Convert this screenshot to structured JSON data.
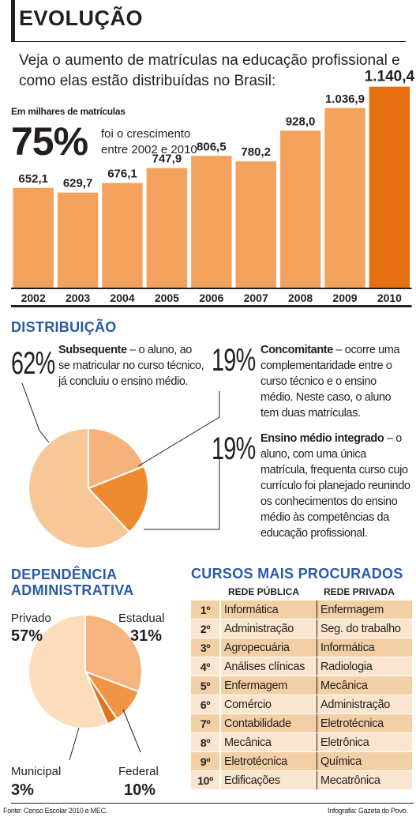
{
  "header": {
    "title": "EVOLUÇÃO",
    "subtitle": "Veja o aumento de matrículas na educação profissional e como elas estão distribuídas no Brasil:"
  },
  "evolucao": {
    "unit": "Em milhares de matrículas",
    "growth_pct": "75%",
    "growth_text": "foi o crescimento entre 2002 e 2010"
  },
  "chart_data": [
    {
      "type": "bar",
      "categories": [
        "2002",
        "2003",
        "2004",
        "2005",
        "2006",
        "2007",
        "2008",
        "2009",
        "2010"
      ],
      "values": [
        652.1,
        629.7,
        676.1,
        747.9,
        806.5,
        780.2,
        928.0,
        1036.9,
        1140.4
      ],
      "value_labels": [
        "652,1",
        "629,7",
        "676,1",
        "747,9",
        "806,5",
        "780,2",
        "928,0",
        "1.036,9",
        "1.140,4"
      ],
      "ylabel": "Em milhares de matrículas",
      "colors": {
        "bar": "#f3a25e",
        "highlight": "#e66f10",
        "axis": "#231f20"
      },
      "highlight_index": 8
    },
    {
      "type": "pie",
      "title": "DISTRIBUIÇÃO",
      "slices": [
        {
          "label": "Subsequente",
          "value": 62,
          "display": "62%",
          "color": "#f7c798"
        },
        {
          "label": "Concomitante",
          "value": 19,
          "display": "19%",
          "color": "#f5b27a"
        },
        {
          "label": "Ensino médio integrado",
          "value": 19,
          "display": "19%",
          "color": "#ee8a30"
        }
      ]
    },
    {
      "type": "pie",
      "title": "DEPENDÊNCIA ADMINISTRATIVA",
      "slices": [
        {
          "label": "Estadual",
          "value": 31,
          "display": "31%",
          "color": "#f6b57e"
        },
        {
          "label": "Federal",
          "value": 10,
          "display": "10%",
          "color": "#f19446"
        },
        {
          "label": "Municipal",
          "value": 3,
          "display": "3%",
          "color": "#e37415"
        },
        {
          "label": "Privado",
          "value": 57,
          "display": "57%",
          "color": "#fcdcbb"
        }
      ]
    }
  ],
  "distribuicao": {
    "title": "DISTRIBUIÇÃO",
    "subsequente": {
      "pct": "62%",
      "name": "Subsequente",
      "text": " – o aluno, ao se matricular no curso técnico, já concluiu o ensino médio."
    },
    "concomitante": {
      "pct": "19%",
      "name": "Concomitante",
      "text": " – ocorre uma complementaridade entre o curso técnico e o ensino médio. Neste caso, o aluno tem duas matrículas."
    },
    "integrado": {
      "pct": "19%",
      "name": "Ensino médio integrado",
      "text": " – o aluno, com uma única matrícula, frequenta curso cujo currículo foi planejado reunindo os conhecimentos do ensino médio às competências da educação profissional."
    }
  },
  "dependencia": {
    "title": "DEPENDÊNCIA ADMINISTRATIVA",
    "privado": {
      "label": "Privado",
      "pct": "57%"
    },
    "estadual": {
      "label": "Estadual",
      "pct": "31%"
    },
    "municipal": {
      "label": "Municipal",
      "pct": "3%"
    },
    "federal": {
      "label": "Federal",
      "pct": "10%"
    }
  },
  "cursos": {
    "title": "CURSOS MAIS PROCURADOS",
    "col_publica": "REDE PÚBLICA",
    "col_privada": "REDE PRIVADA",
    "rows": [
      {
        "rank": "1º",
        "publica": "Informática",
        "privada": "Enfermagem"
      },
      {
        "rank": "2º",
        "publica": "Administração",
        "privada": "Seg. do trabalho"
      },
      {
        "rank": "3º",
        "publica": "Agropecuária",
        "privada": "Informática"
      },
      {
        "rank": "4º",
        "publica": "Análises clínicas",
        "privada": "Radiologia"
      },
      {
        "rank": "5º",
        "publica": "Enfermagem",
        "privada": "Mecânica"
      },
      {
        "rank": "6º",
        "publica": "Comércio",
        "privada": "Administração"
      },
      {
        "rank": "7º",
        "publica": "Contabilidade",
        "privada": "Eletrotécnica"
      },
      {
        "rank": "8º",
        "publica": "Mecânica",
        "privada": "Eletrônica"
      },
      {
        "rank": "9º",
        "publica": "Eletrotécnica",
        "privada": "Química"
      },
      {
        "rank": "10º",
        "publica": "Edificações",
        "privada": "Mecatrônica"
      }
    ]
  },
  "footer": {
    "source": "Fonte: Censo Escolar 2010 e MEC.",
    "credit": "Infografia: Gazeta do Povo."
  }
}
